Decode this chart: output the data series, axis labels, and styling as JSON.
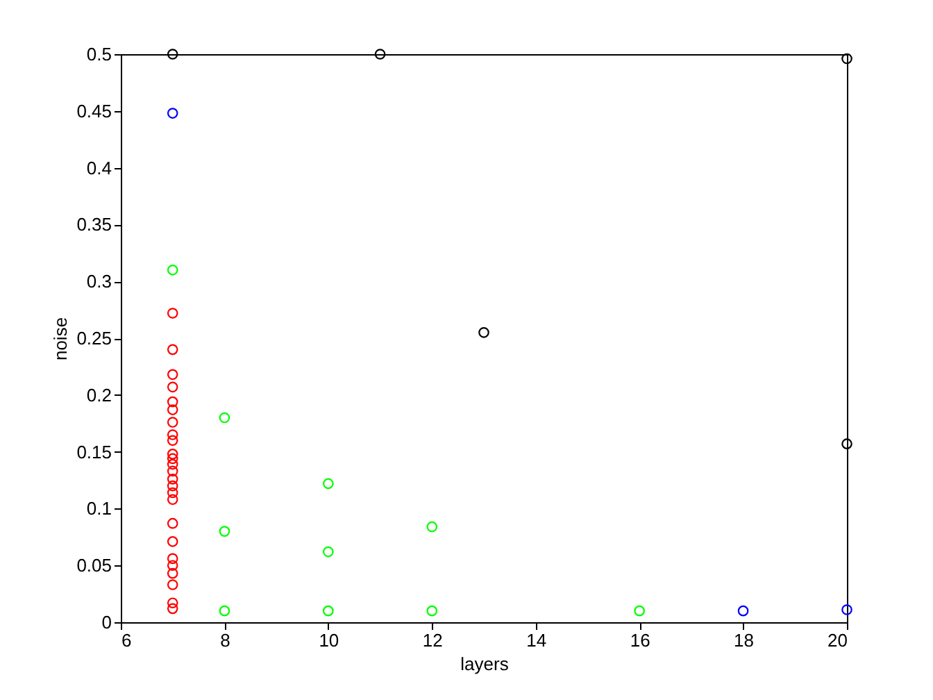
{
  "chart_data": {
    "type": "scatter",
    "xlabel": "layers",
    "ylabel": "noise",
    "xlim": [
      6,
      20
    ],
    "xticks": [
      6,
      8,
      10,
      12,
      14,
      16,
      18,
      20
    ],
    "ylim": [
      0,
      0.5
    ],
    "yticks": [
      0,
      0.05,
      0.1,
      0.15,
      0.2,
      0.25,
      0.3,
      0.35,
      0.4,
      0.45,
      0.5
    ],
    "grid": false,
    "legend": false,
    "marker": "circle",
    "series": [
      {
        "color": "#ff0000",
        "x": [
          7,
          7,
          7,
          7,
          7,
          7,
          7,
          7,
          7,
          7,
          7,
          7,
          7,
          7,
          7,
          7,
          7,
          7,
          7,
          7,
          7,
          7,
          7,
          7,
          7
        ],
        "values": [
          0.272,
          0.24,
          0.218,
          0.207,
          0.194,
          0.187,
          0.176,
          0.165,
          0.16,
          0.148,
          0.144,
          0.139,
          0.133,
          0.126,
          0.12,
          0.114,
          0.108,
          0.087,
          0.071,
          0.056,
          0.05,
          0.043,
          0.033,
          0.017,
          0.012
        ]
      },
      {
        "color": "#00ff00",
        "x": [
          7,
          8,
          8,
          8,
          10,
          10,
          10,
          12,
          12,
          16
        ],
        "values": [
          0.31,
          0.18,
          0.08,
          0.01,
          0.122,
          0.062,
          0.01,
          0.084,
          0.01,
          0.01
        ]
      },
      {
        "color": "#0000ff",
        "x": [
          7,
          18,
          20
        ],
        "values": [
          0.448,
          0.01,
          0.011
        ]
      },
      {
        "color": "#000000",
        "x": [
          7,
          11,
          20,
          13,
          20
        ],
        "values": [
          0.5,
          0.5,
          0.496,
          0.255,
          0.157
        ]
      }
    ]
  }
}
